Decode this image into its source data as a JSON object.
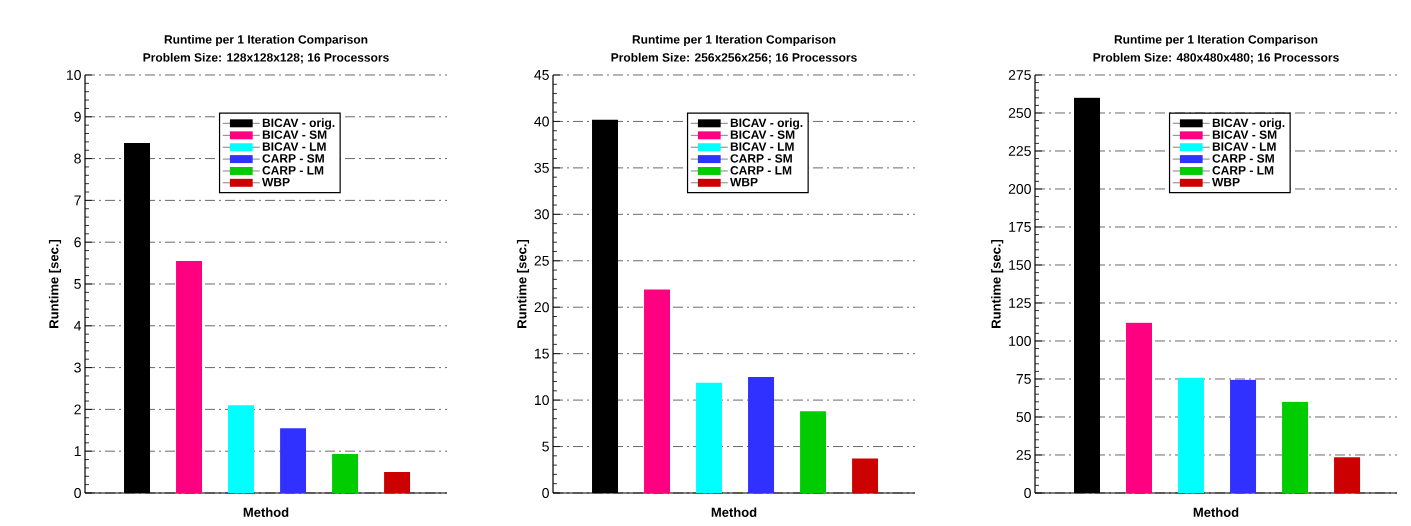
{
  "chart_data": [
    {
      "type": "bar",
      "title": "Runtime per 1 Iteration Comparison",
      "subtitle": "Problem Size: 128x128x128; 16 Processors",
      "xlabel": "Method",
      "ylabel": "Runtime [sec.]",
      "categories": [
        null,
        null,
        null,
        null,
        null,
        null
      ],
      "series": [
        {
          "name": "BICAV - orig.",
          "color": "#000000",
          "values": [
            8.37,
            null,
            null,
            null,
            null,
            null
          ]
        },
        {
          "name": "BICAV - SM",
          "color": "#ff0080",
          "values": [
            null,
            5.55,
            null,
            null,
            null,
            null
          ]
        },
        {
          "name": "BICAV - LM",
          "color": "#00ffff",
          "values": [
            null,
            null,
            2.1,
            null,
            null,
            null
          ]
        },
        {
          "name": "CARP - SM",
          "color": "#3030ff",
          "values": [
            null,
            null,
            null,
            1.55,
            null,
            null
          ]
        },
        {
          "name": "CARP - LM",
          "color": "#00cc00",
          "values": [
            null,
            null,
            null,
            null,
            0.93,
            null
          ]
        },
        {
          "name": "WBP",
          "color": "#cc0000",
          "values": [
            null,
            null,
            null,
            null,
            null,
            0.5
          ]
        }
      ],
      "ylim": [
        0,
        10
      ],
      "yticks": [
        0,
        1,
        2,
        3,
        4,
        5,
        6,
        7,
        8,
        9,
        10
      ],
      "grid": "y",
      "legend": "top right",
      "tick_labels": "y"
    },
    {
      "type": "bar",
      "title": "Runtime per 1 Iteration Comparison",
      "subtitle": "Problem Size: 256x256x256; 16 Processors",
      "xlabel": "Method",
      "ylabel": "Runtime [sec.]",
      "categories": [
        null,
        null,
        null,
        null,
        null,
        null
      ],
      "series": [
        {
          "name": "BICAV - orig.",
          "color": "#000000",
          "values": [
            40.2,
            null,
            null,
            null,
            null,
            null
          ]
        },
        {
          "name": "BICAV - SM",
          "color": "#ff0080",
          "values": [
            null,
            21.9,
            null,
            null,
            null,
            null
          ]
        },
        {
          "name": "BICAV - LM",
          "color": "#00ffff",
          "values": [
            null,
            null,
            11.9,
            null,
            null,
            null
          ]
        },
        {
          "name": "CARP - SM",
          "color": "#3030ff",
          "values": [
            null,
            null,
            null,
            12.5,
            null,
            null
          ]
        },
        {
          "name": "CARP - LM",
          "color": "#00cc00",
          "values": [
            null,
            null,
            null,
            null,
            8.8,
            null
          ]
        },
        {
          "name": "WBP",
          "color": "#cc0000",
          "values": [
            null,
            null,
            null,
            null,
            null,
            3.7
          ]
        }
      ],
      "ylim": [
        0,
        45
      ],
      "yticks": [
        0,
        5,
        10,
        15,
        20,
        25,
        30,
        35,
        40,
        45
      ],
      "grid": "y",
      "legend": "top right",
      "tick_labels": "y"
    },
    {
      "type": "bar",
      "title": "Runtime per 1 Iteration Comparison",
      "subtitle": "Problem Size: 480x480x480; 16 Processors",
      "xlabel": "Method",
      "ylabel": "Runtime [sec.]",
      "categories": [
        null,
        null,
        null,
        null,
        null,
        null
      ],
      "series": [
        {
          "name": "BICAV - orig.",
          "color": "#000000",
          "values": [
            260,
            null,
            null,
            null,
            null,
            null
          ]
        },
        {
          "name": "BICAV - SM",
          "color": "#ff0080",
          "values": [
            null,
            112,
            null,
            null,
            null,
            null
          ]
        },
        {
          "name": "BICAV - LM",
          "color": "#00ffff",
          "values": [
            null,
            null,
            76,
            null,
            null,
            null
          ]
        },
        {
          "name": "CARP - SM",
          "color": "#3030ff",
          "values": [
            null,
            null,
            null,
            74.5,
            null,
            null
          ]
        },
        {
          "name": "CARP - LM",
          "color": "#00cc00",
          "values": [
            null,
            null,
            null,
            null,
            60,
            null
          ]
        },
        {
          "name": "WBP",
          "color": "#cc0000",
          "values": [
            null,
            null,
            null,
            null,
            null,
            23.5
          ]
        }
      ],
      "ylim": [
        0,
        275
      ],
      "yticks": [
        0,
        25,
        50,
        75,
        100,
        125,
        150,
        175,
        200,
        225,
        250,
        275
      ],
      "grid": "y",
      "legend": "top right",
      "tick_labels": "y"
    }
  ]
}
